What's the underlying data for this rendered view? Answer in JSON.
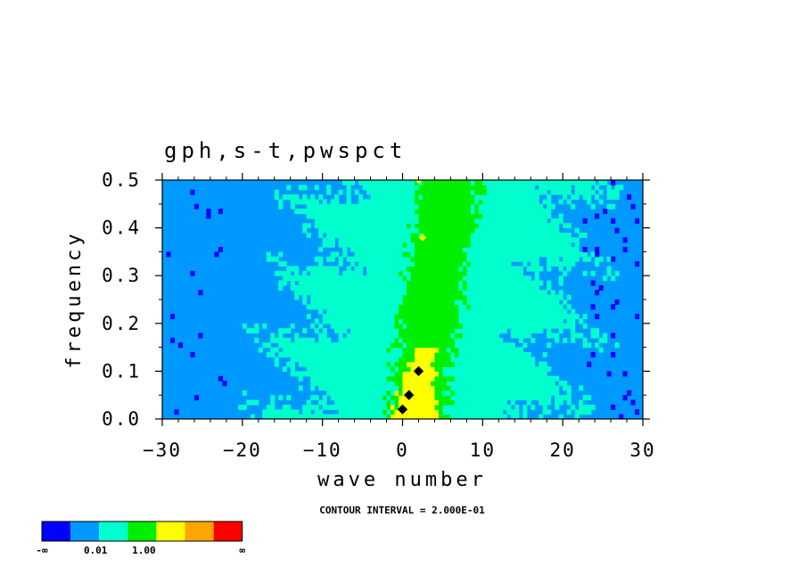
{
  "chart_data": {
    "type": "heatmap",
    "title": "gph,s-t,pwspct",
    "xlabel": "wave number",
    "ylabel": "frequency",
    "xlim": [
      -30,
      30
    ],
    "ylim": [
      0.0,
      0.5
    ],
    "x_ticks": [
      "-30",
      "-20",
      "-10",
      "0",
      "10",
      "20",
      "30"
    ],
    "y_ticks": [
      "0.0",
      "0.1",
      "0.2",
      "0.3",
      "0.4",
      "0.5"
    ],
    "annotation": "CONTOUR INTERVAL = 2.000E-01",
    "colorbar": {
      "colors": [
        "#0000ff",
        "#0099ff",
        "#00ffcc",
        "#00ee00",
        "#ffff00",
        "#ffa500",
        "#ff0000"
      ],
      "labels": [
        "-∞",
        "0.01",
        "1.00",
        "∞"
      ]
    },
    "description_levels": {
      "background": "#0099ff",
      "band": "#00ffcc",
      "core": "#00ee00",
      "peak": "#ffff00",
      "max": "#000000"
    }
  }
}
